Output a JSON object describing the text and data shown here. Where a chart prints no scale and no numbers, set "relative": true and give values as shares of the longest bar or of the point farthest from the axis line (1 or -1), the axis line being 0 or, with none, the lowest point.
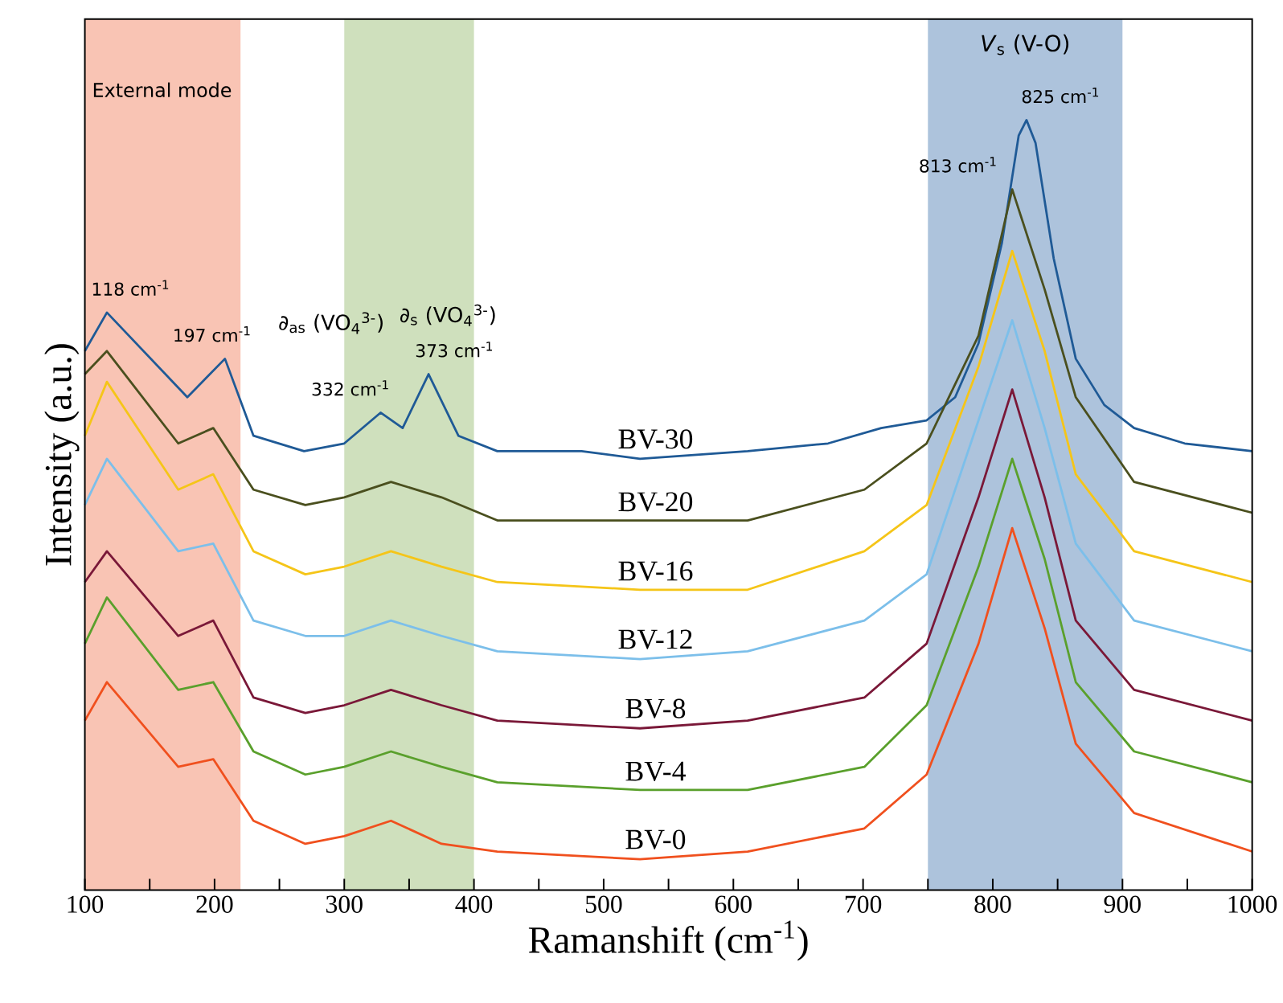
{
  "chart_data": {
    "type": "line",
    "relative": true,
    "xlabel": "Ramanshift (cm$^{-1}$)",
    "ylabel": "Intensity (a.u.)",
    "xlim": [
      100,
      1000
    ],
    "xticks": [
      100,
      {
        "value": 150,
        "label": null
      },
      200,
      {
        "value": 250,
        "label": null
      },
      300,
      {
        "value": 350,
        "label": null
      },
      400,
      {
        "value": 450,
        "label": null
      },
      500,
      {
        "value": 550,
        "label": null
      },
      600,
      {
        "value": 650,
        "label": null
      },
      700,
      {
        "value": 750,
        "label": null
      },
      800,
      {
        "value": 850,
        "label": null
      },
      900,
      {
        "value": 950,
        "label": null
      },
      1000
    ],
    "series": [
      {
        "name": "BV-30",
        "color": "#1f5a96",
        "x": [
          100,
          117,
          179,
          208,
          230,
          269,
          300,
          328,
          345,
          365,
          388,
          418,
          483,
          528,
          611,
          673,
          714,
          749,
          771,
          789,
          807,
          820,
          826,
          833,
          847,
          864,
          886,
          909,
          948,
          1000
        ],
        "values": [
          0.7,
          0.75,
          0.64,
          0.69,
          0.59,
          0.57,
          0.58,
          0.62,
          0.6,
          0.67,
          0.59,
          0.57,
          0.57,
          0.56,
          0.57,
          0.58,
          0.6,
          0.61,
          0.64,
          0.71,
          0.84,
          0.98,
          1,
          0.97,
          0.82,
          0.69,
          0.63,
          0.6,
          0.58,
          0.57
        ]
      },
      {
        "name": "BV-20",
        "color": "#4a4f1e",
        "x": [
          100,
          117,
          172,
          199,
          230,
          270,
          300,
          336,
          375,
          418,
          528,
          611,
          701,
          749,
          789,
          815,
          840,
          864,
          909,
          1000
        ],
        "values": [
          0.67,
          0.7,
          0.58,
          0.6,
          0.52,
          0.5,
          0.51,
          0.53,
          0.51,
          0.48,
          0.48,
          0.48,
          0.52,
          0.58,
          0.72,
          0.91,
          0.78,
          0.64,
          0.53,
          0.49
        ]
      },
      {
        "name": "BV-16",
        "color": "#f5c518",
        "x": [
          100,
          117,
          172,
          199,
          230,
          270,
          300,
          336,
          375,
          418,
          528,
          611,
          701,
          749,
          789,
          815,
          840,
          864,
          909,
          1000
        ],
        "values": [
          0.59,
          0.66,
          0.52,
          0.54,
          0.44,
          0.41,
          0.42,
          0.44,
          0.42,
          0.4,
          0.39,
          0.39,
          0.44,
          0.5,
          0.68,
          0.83,
          0.7,
          0.54,
          0.44,
          0.4
        ]
      },
      {
        "name": "BV-12",
        "color": "#7cbfea",
        "x": [
          100,
          117,
          172,
          199,
          230,
          270,
          300,
          336,
          375,
          418,
          528,
          611,
          701,
          749,
          789,
          815,
          840,
          864,
          909,
          1000
        ],
        "values": [
          0.5,
          0.56,
          0.44,
          0.45,
          0.35,
          0.33,
          0.33,
          0.35,
          0.33,
          0.31,
          0.3,
          0.31,
          0.35,
          0.41,
          0.61,
          0.74,
          0.6,
          0.45,
          0.35,
          0.31
        ]
      },
      {
        "name": "BV-8",
        "color": "#7a1838",
        "x": [
          100,
          117,
          172,
          199,
          230,
          270,
          300,
          336,
          375,
          418,
          528,
          611,
          701,
          749,
          789,
          815,
          840,
          864,
          909,
          1000
        ],
        "values": [
          0.4,
          0.44,
          0.33,
          0.35,
          0.25,
          0.23,
          0.24,
          0.26,
          0.24,
          0.22,
          0.21,
          0.22,
          0.25,
          0.32,
          0.51,
          0.65,
          0.51,
          0.35,
          0.26,
          0.22
        ]
      },
      {
        "name": "BV-4",
        "color": "#5aa02c",
        "x": [
          100,
          117,
          172,
          199,
          230,
          270,
          300,
          336,
          375,
          418,
          528,
          611,
          701,
          749,
          789,
          815,
          840,
          864,
          909,
          1000
        ],
        "values": [
          0.32,
          0.38,
          0.26,
          0.27,
          0.18,
          0.15,
          0.16,
          0.18,
          0.16,
          0.14,
          0.13,
          0.13,
          0.16,
          0.24,
          0.42,
          0.56,
          0.43,
          0.27,
          0.18,
          0.14
        ]
      },
      {
        "name": "BV-0",
        "color": "#f0501e",
        "x": [
          100,
          117,
          172,
          199,
          230,
          270,
          300,
          336,
          375,
          418,
          528,
          611,
          701,
          749,
          789,
          815,
          840,
          864,
          909,
          1000
        ],
        "values": [
          0.22,
          0.27,
          0.16,
          0.17,
          0.09,
          0.06,
          0.07,
          0.09,
          0.06,
          0.05,
          0.04,
          0.05,
          0.08,
          0.15,
          0.32,
          0.47,
          0.34,
          0.19,
          0.1,
          0.05
        ]
      }
    ],
    "bands": [
      {
        "axis": "x",
        "from": 100,
        "to": 220,
        "label": "External mode",
        "color": "#f9c4b4"
      },
      {
        "axis": "x",
        "from": 300,
        "to": 400,
        "color": "#cfe0bd"
      },
      {
        "axis": "x",
        "from": 750,
        "to": 900,
        "label": "*V*$_{s}$ (V-O)",
        "color": "#adc3dc"
      }
    ],
    "annotations": [
      {
        "text": "118 cm$^{-1}$",
        "x": 118,
        "y": 0.75
      },
      {
        "text": "197 cm$^{-1}$",
        "x": 208,
        "y": 0.69
      },
      {
        "text": "332 cm$^{-1}$",
        "x": 332,
        "y": 0.62
      },
      {
        "text": "373 cm$^{-1}$",
        "x": 365,
        "y": 0.67
      },
      {
        "text": "813 cm$^{-1}$",
        "x": 813,
        "y": 0.91
      },
      {
        "text": "825 cm$^{-1}$",
        "x": 825,
        "y": 1
      },
      "∂$_{as}$ (VO$_{4}$$^{3-}$)",
      "∂$_{s}$ (VO$_{4}$$^{3-}$)"
    ]
  }
}
